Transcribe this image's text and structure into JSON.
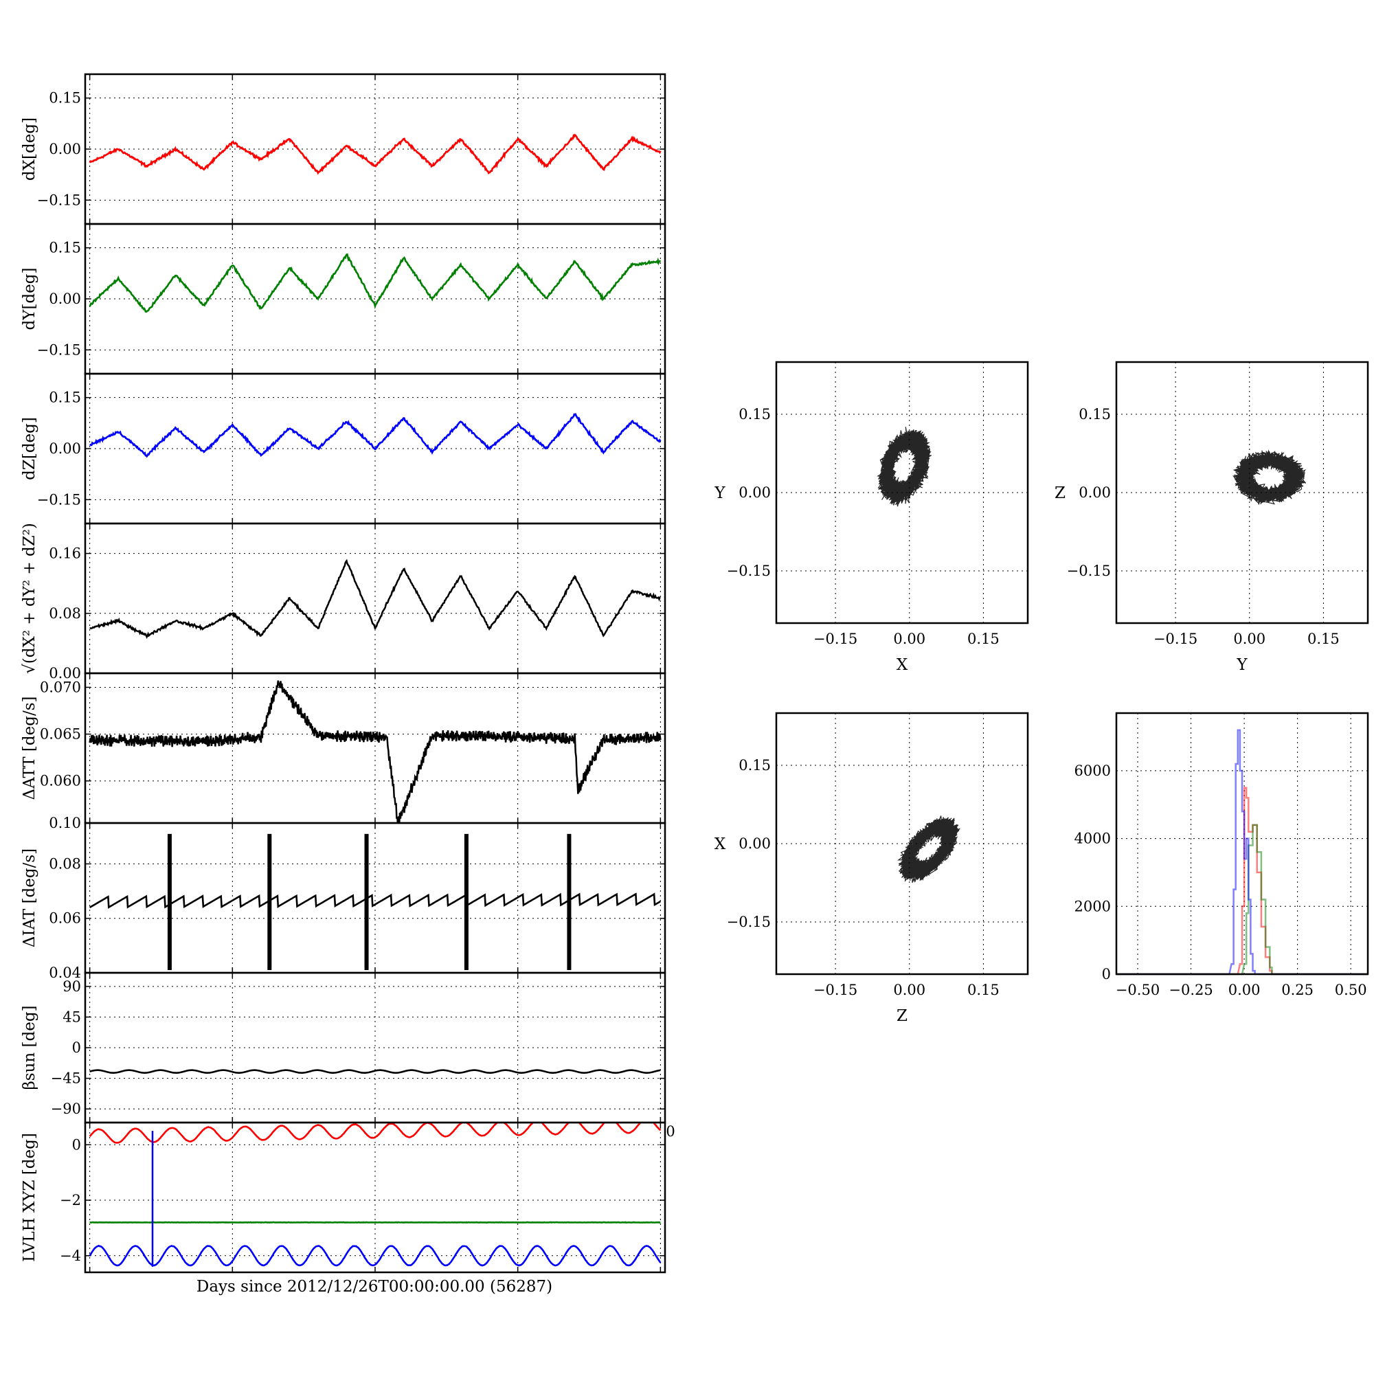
{
  "xlabel": "Days since 2012/12/26T00:00:00.00 (56287)",
  "chart_data": [
    {
      "type": "line",
      "ylabel": "dX[deg]",
      "ylim": [
        -0.22,
        0.22
      ],
      "yticks": [
        -0.15,
        0.0,
        0.15
      ],
      "yticklabels": [
        "−0.15",
        "0.00",
        "0.15"
      ],
      "series": [
        {
          "color": "#ff0000",
          "x": [
            0,
            5,
            10,
            15,
            20,
            25,
            30,
            35,
            40,
            45,
            50,
            55,
            60,
            65,
            70,
            75,
            80,
            85,
            90,
            95,
            100
          ],
          "y": [
            -0.04,
            0.0,
            -0.05,
            0.0,
            -0.06,
            0.02,
            -0.03,
            0.03,
            -0.07,
            0.01,
            -0.05,
            0.03,
            -0.05,
            0.03,
            -0.07,
            0.03,
            -0.05,
            0.04,
            -0.06,
            0.03,
            -0.01
          ]
        }
      ]
    },
    {
      "type": "line",
      "ylabel": "dY[deg]",
      "ylim": [
        -0.22,
        0.22
      ],
      "yticks": [
        -0.15,
        0.0,
        0.15
      ],
      "yticklabels": [
        "−0.15",
        "0.00",
        "0.15"
      ],
      "series": [
        {
          "color": "#008000",
          "x": [
            0,
            5,
            10,
            15,
            20,
            25,
            30,
            35,
            40,
            45,
            50,
            55,
            60,
            65,
            70,
            75,
            80,
            85,
            90,
            95,
            100
          ],
          "y": [
            -0.02,
            0.06,
            -0.04,
            0.07,
            -0.02,
            0.1,
            -0.03,
            0.09,
            0.0,
            0.13,
            -0.02,
            0.12,
            0.0,
            0.1,
            0.0,
            0.1,
            0.0,
            0.11,
            0.0,
            0.1,
            0.11
          ]
        }
      ]
    },
    {
      "type": "line",
      "ylabel": "dZ[deg]",
      "ylim": [
        -0.22,
        0.22
      ],
      "yticks": [
        -0.15,
        0.0,
        0.15
      ],
      "yticklabels": [
        "−0.15",
        "0.00",
        "0.15"
      ],
      "series": [
        {
          "color": "#0000ff",
          "x": [
            0,
            5,
            10,
            15,
            20,
            25,
            30,
            35,
            40,
            45,
            50,
            55,
            60,
            65,
            70,
            75,
            80,
            85,
            90,
            95,
            100
          ],
          "y": [
            0.01,
            0.05,
            -0.02,
            0.06,
            -0.01,
            0.07,
            -0.02,
            0.06,
            0.0,
            0.08,
            0.0,
            0.09,
            -0.01,
            0.08,
            0.0,
            0.07,
            0.0,
            0.1,
            -0.01,
            0.08,
            0.02
          ]
        }
      ]
    },
    {
      "type": "line",
      "ylabel": "√(dX² + dY² + dZ²)",
      "ylim": [
        0.0,
        0.2
      ],
      "yticks": [
        0.0,
        0.08,
        0.16
      ],
      "yticklabels": [
        "0.00",
        "0.08",
        "0.16"
      ],
      "series": [
        {
          "color": "#000000",
          "x": [
            0,
            5,
            10,
            15,
            20,
            25,
            30,
            35,
            40,
            45,
            50,
            55,
            60,
            65,
            70,
            75,
            80,
            85,
            90,
            95,
            100
          ],
          "y": [
            0.06,
            0.07,
            0.05,
            0.07,
            0.06,
            0.08,
            0.05,
            0.1,
            0.06,
            0.15,
            0.06,
            0.14,
            0.07,
            0.13,
            0.06,
            0.11,
            0.06,
            0.13,
            0.05,
            0.11,
            0.1
          ]
        }
      ]
    },
    {
      "type": "line",
      "ylabel": "ΔATT [deg/s]",
      "ylim": [
        0.0555,
        0.0715
      ],
      "yticks": [
        0.06,
        0.065,
        0.07
      ],
      "yticklabels": [
        "0.060",
        "0.065",
        "0.070"
      ],
      "bottom_label": "0.10",
      "series": [
        {
          "color": "#000000",
          "x": [
            0,
            10,
            20,
            30,
            33,
            40,
            52,
            54,
            60,
            70,
            85,
            85.5,
            90,
            100
          ],
          "y": [
            0.0643,
            0.0643,
            0.0642,
            0.0647,
            0.0705,
            0.0648,
            0.0647,
            0.0555,
            0.0648,
            0.0648,
            0.0645,
            0.059,
            0.0644,
            0.0647
          ]
        }
      ]
    },
    {
      "type": "line",
      "ylabel": "ΔIAT [deg/s]",
      "ylim": [
        0.04,
        0.095
      ],
      "yticks": [
        0.04,
        0.06,
        0.08
      ],
      "yticklabels": [
        "0.04",
        "0.06",
        "0.08"
      ],
      "spikes": [
        14,
        31.5,
        48.5,
        66,
        84
      ],
      "spike_range": [
        0.041,
        0.091
      ],
      "series": [
        {
          "color": "#000000",
          "x": [
            0,
            100
          ],
          "y": [
            0.064,
            0.065
          ]
        }
      ]
    },
    {
      "type": "line",
      "ylabel": "βsun [deg]",
      "ylim": [
        -110,
        110
      ],
      "yticks": [
        -90,
        -45,
        0,
        45,
        90
      ],
      "yticklabels": [
        "−90",
        "−45",
        "0",
        "45",
        "90"
      ],
      "series": [
        {
          "color": "#000000",
          "x": [
            0,
            100
          ],
          "y": [
            -35,
            -35
          ]
        }
      ]
    },
    {
      "type": "line",
      "ylabel": "LVLH XYZ [deg]",
      "ylim": [
        -4.6,
        0.8
      ],
      "yticks": [
        -4,
        -2,
        0
      ],
      "yticklabels": [
        "−4",
        "−2",
        "0"
      ],
      "xticks": [
        0,
        25,
        50,
        75,
        100
      ],
      "right_edge_label": "0",
      "series": [
        {
          "color": "#ff0000",
          "x": [
            0,
            100
          ],
          "y": [
            0.3,
            0.7
          ]
        },
        {
          "color": "#008000",
          "x": [
            0,
            100
          ],
          "y": [
            -2.8,
            -2.8
          ]
        },
        {
          "color": "#0000ff",
          "x": [
            0,
            100
          ],
          "y": [
            -4.0,
            -4.0
          ]
        }
      ],
      "glitch": {
        "x": 11,
        "y": [
          -4.4,
          0.5
        ],
        "color": "#0000ff"
      }
    },
    {
      "type": "scatter",
      "xlabel": "X",
      "ylabel": "Y",
      "xlim": [
        -0.27,
        0.24
      ],
      "ylim": [
        -0.25,
        0.25
      ],
      "ticks": [
        -0.15,
        0.0,
        0.15
      ],
      "ticklabels": [
        "−0.15",
        "0.00",
        "0.15"
      ],
      "center": [
        -0.01,
        0.05
      ],
      "spread": [
        0.04,
        0.06
      ]
    },
    {
      "type": "scatter",
      "xlabel": "Y",
      "ylabel": "Z",
      "xlim": [
        -0.27,
        0.24
      ],
      "ylim": [
        -0.25,
        0.25
      ],
      "ticks": [
        -0.15,
        0.0,
        0.15
      ],
      "ticklabels": [
        "−0.15",
        "0.00",
        "0.15"
      ],
      "center": [
        0.04,
        0.03
      ],
      "spread": [
        0.06,
        0.04
      ]
    },
    {
      "type": "scatter",
      "xlabel": "Z",
      "ylabel": "X",
      "xlim": [
        -0.27,
        0.24
      ],
      "ylim": [
        -0.25,
        0.25
      ],
      "ticks": [
        -0.15,
        0.0,
        0.15
      ],
      "ticklabels": [
        "−0.15",
        "0.00",
        "0.15"
      ],
      "center": [
        0.04,
        -0.01
      ],
      "spread": [
        0.05,
        0.04
      ]
    },
    {
      "type": "histogram",
      "xlim": [
        -0.6,
        0.58
      ],
      "ylim": [
        0,
        7700
      ],
      "xticks": [
        -0.5,
        -0.25,
        0.0,
        0.25,
        0.5
      ],
      "xticklabels": [
        "−0.50",
        "−0.25",
        "0.00",
        "0.25",
        "0.50"
      ],
      "yticks": [
        0,
        2000,
        4000,
        6000
      ],
      "yticklabels": [
        "0",
        "2000",
        "4000",
        "6000"
      ],
      "series": [
        {
          "color": "#ff0000",
          "alpha": 0.5,
          "peak_x": 0.0,
          "peak": 5500,
          "bins": [
            [
              -0.02,
              300
            ],
            [
              -0.01,
              2000
            ],
            [
              0.0,
              5500
            ],
            [
              0.01,
              5200
            ],
            [
              0.02,
              4200
            ],
            [
              0.04,
              4400
            ],
            [
              0.06,
              3000
            ],
            [
              0.08,
              1400
            ],
            [
              0.1,
              500
            ],
            [
              0.12,
              100
            ]
          ]
        },
        {
          "color": "#008000",
          "alpha": 0.5,
          "peak_x": 0.05,
          "peak": 4400,
          "bins": [
            [
              0.0,
              300
            ],
            [
              0.01,
              1800
            ],
            [
              0.02,
              3800
            ],
            [
              0.04,
              4400
            ],
            [
              0.06,
              3600
            ],
            [
              0.08,
              2200
            ],
            [
              0.1,
              800
            ],
            [
              0.12,
              200
            ]
          ]
        },
        {
          "color": "#0000ff",
          "alpha": 0.5,
          "peak_x": -0.03,
          "peak": 7200,
          "bins": [
            [
              -0.06,
              300
            ],
            [
              -0.05,
              2500
            ],
            [
              -0.04,
              6200
            ],
            [
              -0.03,
              7200
            ],
            [
              -0.02,
              6000
            ],
            [
              -0.01,
              4800
            ],
            [
              0.0,
              3400
            ],
            [
              0.01,
              4000
            ],
            [
              0.02,
              2200
            ],
            [
              0.03,
              600
            ],
            [
              0.04,
              100
            ]
          ]
        }
      ]
    }
  ]
}
